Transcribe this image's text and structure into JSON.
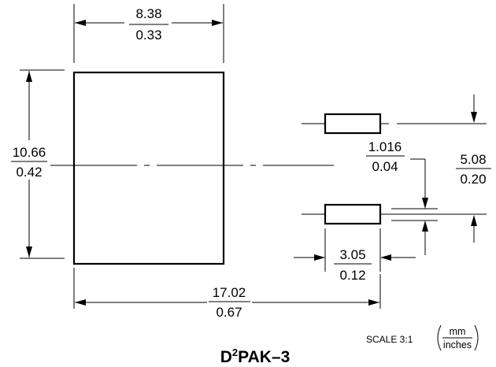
{
  "dims": {
    "pad_width": {
      "mm": "8.38",
      "inches": "0.33"
    },
    "pad_height": {
      "mm": "10.66",
      "inches": "0.42"
    },
    "pin_gap": {
      "mm": "1.016",
      "inches": "0.04"
    },
    "pin_pitch": {
      "mm": "5.08",
      "inches": "0.20"
    },
    "pin_length": {
      "mm": "3.05",
      "inches": "0.12"
    },
    "overall_length": {
      "mm": "17.02",
      "inches": "0.67"
    }
  },
  "scale_label": "SCALE 3:1",
  "units": {
    "top": "mm",
    "bottom": "inches"
  },
  "package": {
    "name_prefix": "D",
    "superscript": "2",
    "name_suffix": "PAK–3"
  }
}
